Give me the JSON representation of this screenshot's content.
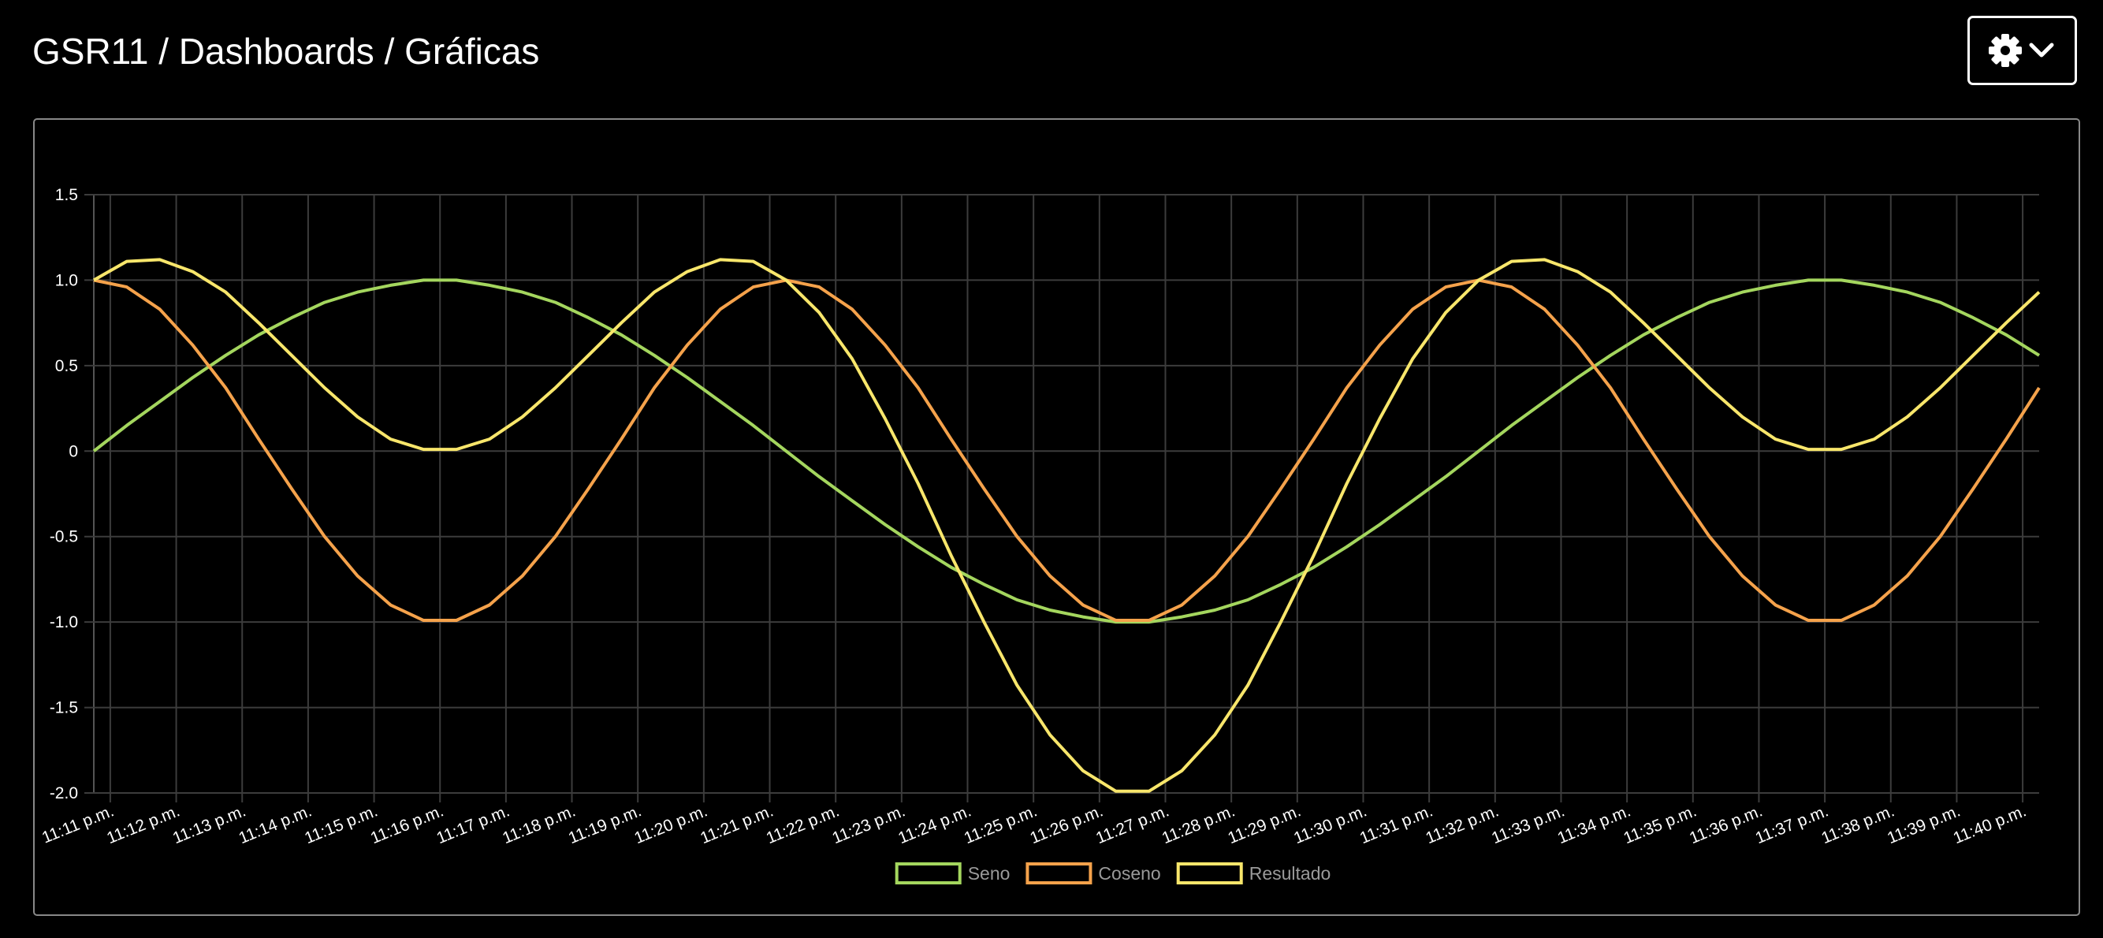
{
  "header": {
    "title": "GSR11 / Dashboards / Gráficas"
  },
  "chart_data": {
    "type": "line",
    "x": [
      -0.25,
      0.25,
      0.75,
      1.25,
      1.75,
      2.25,
      2.75,
      3.25,
      3.75,
      4.25,
      4.75,
      5.25,
      5.75,
      6.25,
      6.75,
      7.25,
      7.75,
      8.25,
      8.75,
      9.25,
      9.75,
      10.25,
      10.75,
      11.25,
      11.75,
      12.25,
      12.75,
      13.25,
      13.75,
      14.25,
      14.75,
      15.25,
      15.75,
      16.25,
      16.75,
      17.25,
      17.75,
      18.25,
      18.75,
      19.25,
      19.75,
      20.25,
      20.75,
      21.25,
      21.75,
      22.25,
      22.75,
      23.25,
      23.75,
      24.25,
      24.75,
      25.25,
      25.75,
      26.25,
      26.75,
      27.25,
      27.75,
      28.25,
      28.75,
      29.25
    ],
    "series": [
      {
        "name": "Seno",
        "color": "#a4d65e",
        "values": [
          0,
          0.15,
          0.29,
          0.43,
          0.56,
          0.68,
          0.78,
          0.87,
          0.93,
          0.97,
          1.0,
          1.0,
          0.97,
          0.93,
          0.87,
          0.78,
          0.68,
          0.56,
          0.43,
          0.29,
          0.15,
          0,
          -0.15,
          -0.29,
          -0.43,
          -0.56,
          -0.68,
          -0.78,
          -0.87,
          -0.93,
          -0.97,
          -1.0,
          -1.0,
          -0.97,
          -0.93,
          -0.87,
          -0.78,
          -0.68,
          -0.56,
          -0.43,
          -0.29,
          -0.15,
          0,
          0.15,
          0.29,
          0.43,
          0.56,
          0.68,
          0.78,
          0.87,
          0.93,
          0.97,
          1.0,
          1.0,
          0.97,
          0.93,
          0.87,
          0.78,
          0.68,
          0.56
        ]
      },
      {
        "name": "Coseno",
        "color": "#f5a24b",
        "values": [
          1,
          0.96,
          0.83,
          0.62,
          0.37,
          0.07,
          -0.22,
          -0.5,
          -0.73,
          -0.9,
          -0.99,
          -0.99,
          -0.9,
          -0.73,
          -0.5,
          -0.22,
          0.07,
          0.37,
          0.62,
          0.83,
          0.96,
          1,
          0.96,
          0.83,
          0.62,
          0.37,
          0.07,
          -0.22,
          -0.5,
          -0.73,
          -0.9,
          -0.99,
          -0.99,
          -0.9,
          -0.73,
          -0.5,
          -0.22,
          0.07,
          0.37,
          0.62,
          0.83,
          0.96,
          1,
          0.96,
          0.83,
          0.62,
          0.37,
          0.07,
          -0.22,
          -0.5,
          -0.73,
          -0.9,
          -0.99,
          -0.99,
          -0.9,
          -0.73,
          -0.5,
          -0.22,
          0.07,
          0.37
        ]
      },
      {
        "name": "Resultado",
        "color": "#f8e66b",
        "values": [
          1,
          1.11,
          1.12,
          1.05,
          0.93,
          0.75,
          0.56,
          0.37,
          0.2,
          0.07,
          0.01,
          0.01,
          0.07,
          0.2,
          0.37,
          0.56,
          0.75,
          0.93,
          1.05,
          1.12,
          1.11,
          1,
          0.81,
          0.54,
          0.19,
          -0.19,
          -0.61,
          -1.0,
          -1.37,
          -1.66,
          -1.87,
          -1.99,
          -1.99,
          -1.87,
          -1.66,
          -1.37,
          -1.0,
          -0.61,
          -0.19,
          0.19,
          0.54,
          0.81,
          1,
          1.11,
          1.12,
          1.05,
          0.93,
          0.75,
          0.56,
          0.37,
          0.2,
          0.07,
          0.01,
          0.01,
          0.07,
          0.2,
          0.37,
          0.56,
          0.75,
          0.93
        ]
      }
    ],
    "xlim": [
      -0.25,
      29.25
    ],
    "xticks": [
      {
        "value": 0,
        "label": "11:11 p.m."
      },
      {
        "value": 1,
        "label": "11:12 p.m."
      },
      {
        "value": 2,
        "label": "11:13 p.m."
      },
      {
        "value": 3,
        "label": "11:14 p.m."
      },
      {
        "value": 4,
        "label": "11:15 p.m."
      },
      {
        "value": 5,
        "label": "11:16 p.m."
      },
      {
        "value": 6,
        "label": "11:17 p.m."
      },
      {
        "value": 7,
        "label": "11:18 p.m."
      },
      {
        "value": 8,
        "label": "11:19 p.m."
      },
      {
        "value": 9,
        "label": "11:20 p.m."
      },
      {
        "value": 10,
        "label": "11:21 p.m."
      },
      {
        "value": 11,
        "label": "11:22 p.m."
      },
      {
        "value": 12,
        "label": "11:23 p.m."
      },
      {
        "value": 13,
        "label": "11:24 p.m."
      },
      {
        "value": 14,
        "label": "11:25 p.m."
      },
      {
        "value": 15,
        "label": "11:26 p.m."
      },
      {
        "value": 16,
        "label": "11:27 p.m."
      },
      {
        "value": 17,
        "label": "11:28 p.m."
      },
      {
        "value": 18,
        "label": "11:29 p.m."
      },
      {
        "value": 19,
        "label": "11:30 p.m."
      },
      {
        "value": 20,
        "label": "11:31 p.m."
      },
      {
        "value": 21,
        "label": "11:32 p.m."
      },
      {
        "value": 22,
        "label": "11:33 p.m."
      },
      {
        "value": 23,
        "label": "11:34 p.m."
      },
      {
        "value": 24,
        "label": "11:35 p.m."
      },
      {
        "value": 25,
        "label": "11:36 p.m."
      },
      {
        "value": 26,
        "label": "11:37 p.m."
      },
      {
        "value": 27,
        "label": "11:38 p.m."
      },
      {
        "value": 28,
        "label": "11:39 p.m."
      },
      {
        "value": 29,
        "label": "11:40 p.m."
      }
    ],
    "ylim": [
      -2.0,
      1.5
    ],
    "yticks": [
      1.5,
      {
        "value": 1.0,
        "label": "1.0"
      },
      0.5,
      0,
      -0.5,
      {
        "value": -1.0,
        "label": "-1.0"
      },
      -1.5,
      {
        "value": -2.0,
        "label": "-2.0"
      }
    ],
    "grid": true
  }
}
